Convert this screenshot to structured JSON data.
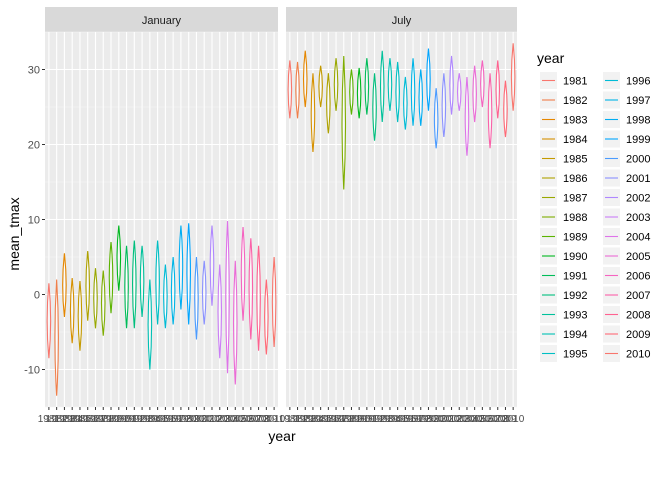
{
  "chart_data": {
    "type": "violin",
    "xlabel": "year",
    "ylabel": "mean_tmax",
    "ylim": [
      -15,
      35
    ],
    "y_ticks": [
      -10,
      0,
      10,
      20,
      30
    ],
    "grid": true,
    "legend": {
      "title": "year",
      "position": "right",
      "columns": 2,
      "entries": [
        "1981",
        "1982",
        "1983",
        "1984",
        "1985",
        "1986",
        "1987",
        "1988",
        "1989",
        "1990",
        "1991",
        "1992",
        "1993",
        "1994",
        "1995",
        "1996",
        "1997",
        "1998",
        "1999",
        "2000",
        "2001",
        "2002",
        "2003",
        "2004",
        "2005",
        "2006",
        "2007",
        "2008",
        "2009",
        "2010"
      ]
    },
    "x_tick_labels": [
      "1981",
      "1982",
      "1983",
      "1984",
      "1985",
      "1986",
      "1987",
      "1988",
      "1989",
      "1990",
      "1991",
      "1992",
      "1993",
      "1994",
      "1995",
      "1996",
      "1997",
      "1998",
      "1999",
      "2000",
      "2001",
      "2002",
      "2003",
      "2004",
      "2005",
      "2006",
      "2007",
      "2008",
      "2009",
      "2010"
    ],
    "series_colors": [
      "#F8766D",
      "#F07F4A",
      "#E58700",
      "#D69100",
      "#C49A00",
      "#AFA200",
      "#99A800",
      "#7FAE00",
      "#5BB300",
      "#00B81F",
      "#00BC59",
      "#00BF7D",
      "#00C19B",
      "#00C1B5",
      "#00BFC4",
      "#00BBD6",
      "#00B5E6",
      "#00ADF2",
      "#00A5FF",
      "#4B9BFF",
      "#8A91FF",
      "#AF87FF",
      "#CB7DF7",
      "#DE73E9",
      "#EB6BD6",
      "#F564C0",
      "#FB61A9",
      "#FF6290",
      "#FF6A77",
      "#F8766D"
    ],
    "panels": [
      {
        "title": "January",
        "series": [
          {
            "year": "1981",
            "min": -8.5,
            "max": 1.5
          },
          {
            "year": "1982",
            "min": -13.5,
            "max": 2.0
          },
          {
            "year": "1983",
            "min": -3.0,
            "max": 5.5
          },
          {
            "year": "1984",
            "min": -6.5,
            "max": 2.2
          },
          {
            "year": "1985",
            "min": -7.5,
            "max": 1.8
          },
          {
            "year": "1986",
            "min": -3.5,
            "max": 5.8
          },
          {
            "year": "1987",
            "min": -4.5,
            "max": 3.5
          },
          {
            "year": "1988",
            "min": -5.5,
            "max": 3.2
          },
          {
            "year": "1989",
            "min": -2.5,
            "max": 7.0
          },
          {
            "year": "1990",
            "min": 0.5,
            "max": 9.2
          },
          {
            "year": "1991",
            "min": -4.5,
            "max": 6.5
          },
          {
            "year": "1992",
            "min": -4.5,
            "max": 7.2
          },
          {
            "year": "1993",
            "min": -3.0,
            "max": 6.5
          },
          {
            "year": "1994",
            "min": -10.0,
            "max": 2.0
          },
          {
            "year": "1995",
            "min": -4.0,
            "max": 7.2
          },
          {
            "year": "1996",
            "min": -4.5,
            "max": 4.0
          },
          {
            "year": "1997",
            "min": -4.0,
            "max": 5.0
          },
          {
            "year": "1998",
            "min": -2.0,
            "max": 9.2
          },
          {
            "year": "1999",
            "min": -4.0,
            "max": 9.5
          },
          {
            "year": "2000",
            "min": -6.0,
            "max": 5.0
          },
          {
            "year": "2001",
            "min": -4.0,
            "max": 4.5
          },
          {
            "year": "2002",
            "min": -1.5,
            "max": 9.2
          },
          {
            "year": "2003",
            "min": -8.5,
            "max": 4.0
          },
          {
            "year": "2004",
            "min": -10.5,
            "max": 9.8
          },
          {
            "year": "2005",
            "min": -12.0,
            "max": 4.5
          },
          {
            "year": "2006",
            "min": -3.5,
            "max": 9.0
          },
          {
            "year": "2007",
            "min": -6.0,
            "max": 7.5
          },
          {
            "year": "2008",
            "min": -7.5,
            "max": 6.5
          },
          {
            "year": "2009",
            "min": -8.0,
            "max": 2.0
          },
          {
            "year": "2010",
            "min": -7.0,
            "max": 5.0
          }
        ]
      },
      {
        "title": "July",
        "series": [
          {
            "year": "1981",
            "min": 23.5,
            "max": 31.2
          },
          {
            "year": "1982",
            "min": 23.5,
            "max": 31.0
          },
          {
            "year": "1983",
            "min": 25.0,
            "max": 32.5
          },
          {
            "year": "1984",
            "min": 19.0,
            "max": 29.5
          },
          {
            "year": "1985",
            "min": 25.0,
            "max": 30.5
          },
          {
            "year": "1986",
            "min": 21.5,
            "max": 29.5
          },
          {
            "year": "1987",
            "min": 24.5,
            "max": 31.5
          },
          {
            "year": "1988",
            "min": 14.0,
            "max": 31.8
          },
          {
            "year": "1989",
            "min": 24.0,
            "max": 30.0
          },
          {
            "year": "1990",
            "min": 23.5,
            "max": 30.2
          },
          {
            "year": "1991",
            "min": 24.0,
            "max": 31.5
          },
          {
            "year": "1992",
            "min": 20.5,
            "max": 29.5
          },
          {
            "year": "1993",
            "min": 23.0,
            "max": 32.5
          },
          {
            "year": "1994",
            "min": 24.5,
            "max": 31.5
          },
          {
            "year": "1995",
            "min": 23.0,
            "max": 31.0
          },
          {
            "year": "1996",
            "min": 22.0,
            "max": 29.0
          },
          {
            "year": "1997",
            "min": 22.5,
            "max": 31.5
          },
          {
            "year": "1998",
            "min": 22.5,
            "max": 30.0
          },
          {
            "year": "1999",
            "min": 24.5,
            "max": 32.8
          },
          {
            "year": "2000",
            "min": 19.5,
            "max": 27.5
          },
          {
            "year": "2001",
            "min": 21.0,
            "max": 29.5
          },
          {
            "year": "2002",
            "min": 24.0,
            "max": 31.8
          },
          {
            "year": "2003",
            "min": 24.5,
            "max": 29.5
          },
          {
            "year": "2004",
            "min": 18.5,
            "max": 29.0
          },
          {
            "year": "2005",
            "min": 23.0,
            "max": 30.5
          },
          {
            "year": "2006",
            "min": 25.0,
            "max": 31.2
          },
          {
            "year": "2007",
            "min": 19.5,
            "max": 29.5
          },
          {
            "year": "2008",
            "min": 23.5,
            "max": 31.2
          },
          {
            "year": "2009",
            "min": 21.0,
            "max": 28.5
          },
          {
            "year": "2010",
            "min": 24.5,
            "max": 33.5
          }
        ]
      }
    ]
  }
}
